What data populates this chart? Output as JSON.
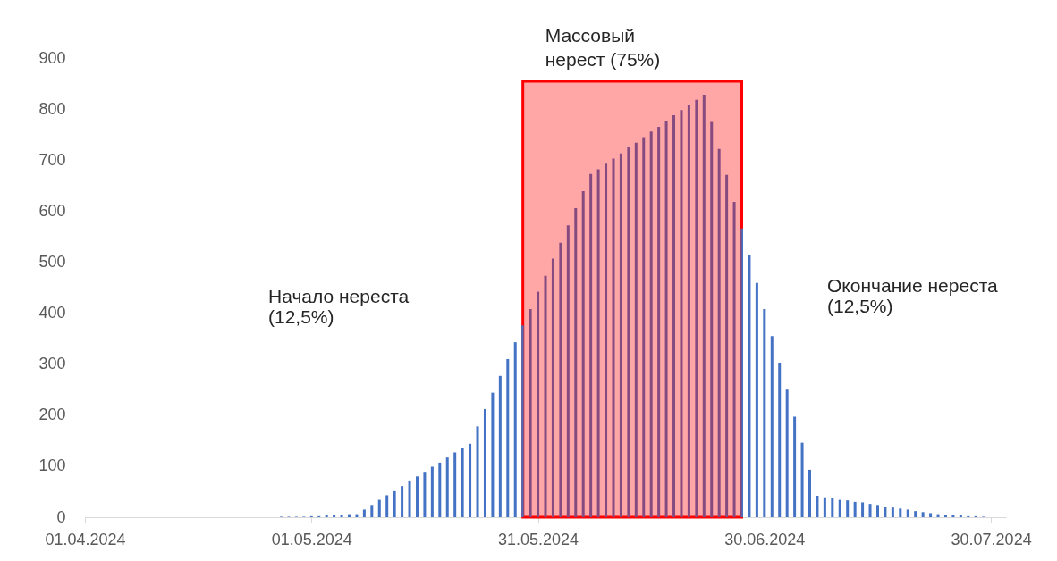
{
  "chart_data": {
    "type": "bar",
    "x": [
      "2024-04-27",
      "2024-04-28",
      "2024-04-29",
      "2024-04-30",
      "2024-05-01",
      "2024-05-02",
      "2024-05-03",
      "2024-05-04",
      "2024-05-05",
      "2024-05-06",
      "2024-05-07",
      "2024-05-08",
      "2024-05-09",
      "2024-05-10",
      "2024-05-11",
      "2024-05-12",
      "2024-05-13",
      "2024-05-14",
      "2024-05-15",
      "2024-05-16",
      "2024-05-17",
      "2024-05-18",
      "2024-05-19",
      "2024-05-20",
      "2024-05-21",
      "2024-05-22",
      "2024-05-23",
      "2024-05-24",
      "2024-05-25",
      "2024-05-26",
      "2024-05-27",
      "2024-05-28",
      "2024-05-29",
      "2024-05-30",
      "2024-05-31",
      "2024-06-01",
      "2024-06-02",
      "2024-06-03",
      "2024-06-04",
      "2024-06-05",
      "2024-06-06",
      "2024-06-07",
      "2024-06-08",
      "2024-06-09",
      "2024-06-10",
      "2024-06-11",
      "2024-06-12",
      "2024-06-13",
      "2024-06-14",
      "2024-06-15",
      "2024-06-16",
      "2024-06-17",
      "2024-06-18",
      "2024-06-19",
      "2024-06-20",
      "2024-06-21",
      "2024-06-22",
      "2024-06-23",
      "2024-06-24",
      "2024-06-25",
      "2024-06-26",
      "2024-06-27",
      "2024-06-28",
      "2024-06-29",
      "2024-06-30",
      "2024-07-01",
      "2024-07-02",
      "2024-07-03",
      "2024-07-04",
      "2024-07-05",
      "2024-07-06",
      "2024-07-07",
      "2024-07-08",
      "2024-07-09",
      "2024-07-10",
      "2024-07-11",
      "2024-07-12",
      "2024-07-13",
      "2024-07-14",
      "2024-07-15",
      "2024-07-16",
      "2024-07-17",
      "2024-07-18",
      "2024-07-19",
      "2024-07-20",
      "2024-07-21",
      "2024-07-22",
      "2024-07-23",
      "2024-07-24",
      "2024-07-25",
      "2024-07-26",
      "2024-07-27",
      "2024-07-28",
      "2024-07-29"
    ],
    "values": [
      1,
      1,
      1,
      1,
      2,
      2,
      4,
      4,
      4,
      6,
      6,
      15,
      24,
      34,
      43,
      51,
      61,
      72,
      80,
      89,
      99,
      107,
      117,
      127,
      135,
      144,
      178,
      212,
      244,
      277,
      310,
      343,
      376,
      408,
      442,
      473,
      507,
      538,
      572,
      606,
      639,
      673,
      682,
      693,
      703,
      713,
      725,
      734,
      745,
      756,
      765,
      776,
      788,
      798,
      808,
      818,
      828,
      775,
      722,
      671,
      618,
      566,
      513,
      459,
      408,
      355,
      303,
      250,
      197,
      146,
      93,
      42,
      39,
      37,
      34,
      33,
      30,
      29,
      26,
      24,
      21,
      19,
      17,
      15,
      12,
      10,
      8,
      6,
      5,
      4,
      4,
      2,
      2,
      1
    ],
    "color": "#4472c4",
    "xlim": [
      "2024-04-01",
      "2024-08-01"
    ],
    "xticks": [
      {
        "value": "2024-04-01",
        "label": "01.04.2024"
      },
      {
        "value": "2024-05-01",
        "label": "01.05.2024"
      },
      {
        "value": "2024-05-31",
        "label": "31.05.2024"
      },
      {
        "value": "2024-06-30",
        "label": "30.06.2024"
      },
      {
        "value": "2024-07-30",
        "label": "30.07.2024"
      }
    ],
    "ylim": [
      0,
      900
    ],
    "yticks": [
      0,
      100,
      200,
      300,
      400,
      500,
      600,
      700,
      800,
      900
    ],
    "grid": false,
    "bands": [
      {
        "axis": "x",
        "from": "2024-05-29",
        "to": "2024-06-27",
        "label": "Массовый\nнерест (75%)",
        "color": "#ff0000"
      }
    ],
    "annotations": [
      "Начало нереста\n(12,5%)",
      "Окончание нереста\n(12,5%)"
    ]
  }
}
